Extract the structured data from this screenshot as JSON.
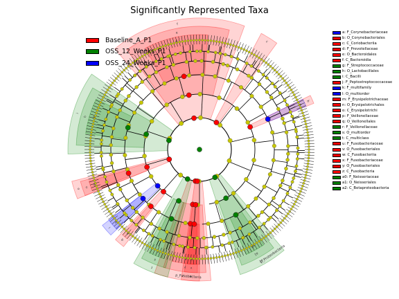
{
  "chart_data": {
    "type": "cladogram",
    "title": "Significantly Represented Taxa",
    "classes": [
      {
        "name": "Baseline_A_P1",
        "color": "#ff0000"
      },
      {
        "name": "OSS_12_Weeks_P1",
        "color": "#008000"
      },
      {
        "name": "OSS_24_Weeks_P1",
        "color": "#0000ff"
      }
    ],
    "taxa": [
      {
        "key": "a",
        "label": "F_Corynebacteriaceae",
        "class": "OSS_24_Weeks_P1"
      },
      {
        "key": "b",
        "label": "O_Corynebacteriales",
        "class": "Baseline_A_P1"
      },
      {
        "key": "c",
        "label": "C_Coriobacteriia",
        "class": "Baseline_A_P1"
      },
      {
        "key": "d",
        "label": "F_Prevotellaceae",
        "class": "Baseline_A_P1"
      },
      {
        "key": "e",
        "label": "O_Bacteroidales",
        "class": "Baseline_A_P1"
      },
      {
        "key": "f",
        "label": "C_Bacteroidia",
        "class": "Baseline_A_P1"
      },
      {
        "key": "g",
        "label": "F_Streptococcaceae",
        "class": "OSS_12_Weeks_P1"
      },
      {
        "key": "h",
        "label": "O_Lactobacillales",
        "class": "OSS_12_Weeks_P1"
      },
      {
        "key": "i",
        "label": "C_Bacilli",
        "class": "OSS_12_Weeks_P1"
      },
      {
        "key": "j",
        "label": "F_Peptostreptococcaceae",
        "class": "Baseline_A_P1"
      },
      {
        "key": "k",
        "label": "F_multifamily",
        "class": "OSS_24_Weeks_P1"
      },
      {
        "key": "l",
        "label": "O_multiorder",
        "class": "OSS_24_Weeks_P1"
      },
      {
        "key": "m",
        "label": "F_Erysipelotrichaceae",
        "class": "Baseline_A_P1"
      },
      {
        "key": "n",
        "label": "O_Erysipelotrichales",
        "class": "Baseline_A_P1"
      },
      {
        "key": "o",
        "label": "C_Erysipelotrichi",
        "class": "Baseline_A_P1"
      },
      {
        "key": "p",
        "label": "F_Veillonellaceae",
        "class": "Baseline_A_P1"
      },
      {
        "key": "q",
        "label": "O_Veillonellales",
        "class": "Baseline_A_P1"
      },
      {
        "key": "r",
        "label": "F_Veillonellaceae",
        "class": "OSS_12_Weeks_P1"
      },
      {
        "key": "s",
        "label": "O_multiorder",
        "class": "OSS_12_Weeks_P1"
      },
      {
        "key": "t",
        "label": "C_multiclass",
        "class": "OSS_12_Weeks_P1"
      },
      {
        "key": "u",
        "label": "F_Fusobacteriaceae",
        "class": "Baseline_A_P1"
      },
      {
        "key": "v",
        "label": "O_Fusobacteriales",
        "class": "Baseline_A_P1"
      },
      {
        "key": "w",
        "label": "C_Fusobacteriia",
        "class": "Baseline_A_P1"
      },
      {
        "key": "x",
        "label": "F_Fusobacteriaceae",
        "class": "Baseline_A_P1"
      },
      {
        "key": "y",
        "label": "O_Fusobacteriales",
        "class": "Baseline_A_P1"
      },
      {
        "key": "z",
        "label": "C_Fusobacteria",
        "class": "Baseline_A_P1"
      },
      {
        "key": "a0",
        "label": "F_Neisseriaceae",
        "class": "OSS_12_Weeks_P1"
      },
      {
        "key": "a1",
        "label": "O_Neisseriales",
        "class": "OSS_12_Weeks_P1"
      },
      {
        "key": "a2",
        "label": "C_Betaproteobacteria",
        "class": "OSS_12_Weeks_P1"
      }
    ],
    "phylum_labels": [
      "p_Fusobacteria",
      "p_Proteobacteria"
    ]
  }
}
